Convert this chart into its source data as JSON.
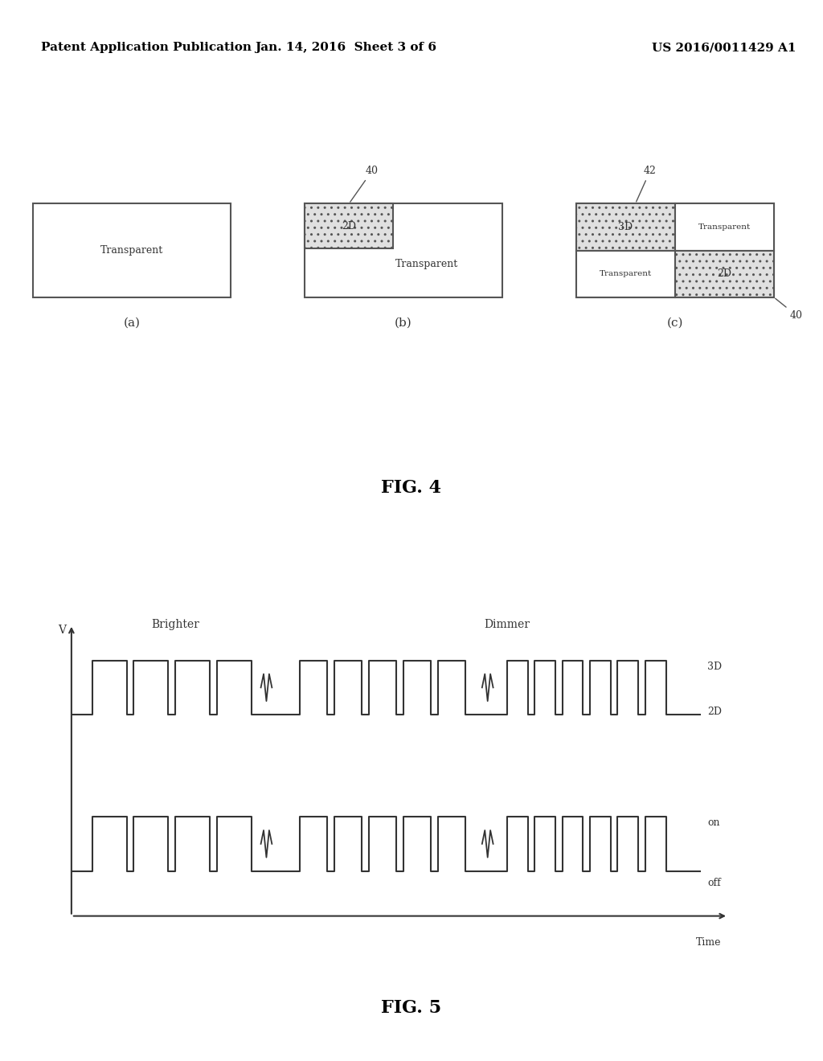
{
  "bg_color": "#ffffff",
  "header_left": "Patent Application Publication",
  "header_center": "Jan. 14, 2016  Sheet 3 of 6",
  "header_right": "US 2016/0011429 A1",
  "fig4_title": "FIG. 4",
  "fig5_title": "FIG. 5",
  "fig4_ref_40": "40",
  "fig4_ref_42": "42",
  "fig4_ref_40b": "40",
  "box_outline": "#555555",
  "text_color": "#333333",
  "waveform_color": "#333333",
  "label_3D": "3D",
  "label_2D": "2D",
  "label_on": "on",
  "label_off": "off",
  "label_V": "V",
  "label_Brighter": "Brighter",
  "label_Dimmer": "Dimmer",
  "label_Time": "Time"
}
